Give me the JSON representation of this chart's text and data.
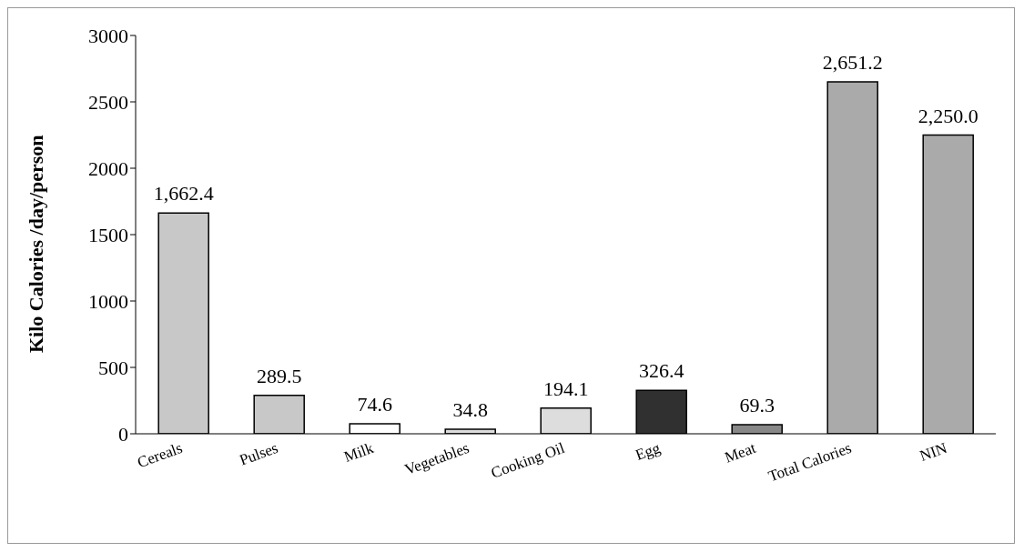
{
  "chart_data": {
    "type": "bar",
    "ylabel": "Kilo Calories /day/person",
    "categories": [
      "Cereals",
      "Pulses",
      "Milk",
      "Vegetables",
      "Cooking Oil",
      "Egg",
      "Meat",
      "Total Calories",
      "NIN"
    ],
    "values": [
      1662.4,
      289.5,
      74.6,
      34.8,
      194.1,
      326.4,
      69.3,
      2651.2,
      2250.0
    ],
    "value_labels": [
      "1,662.4",
      "289.5",
      "74.6",
      "34.8",
      "194.1",
      "326.4",
      "69.3",
      "2,651.2",
      "2,250.0"
    ],
    "colors": [
      "#c8c8c8",
      "#c8c8c8",
      "#ffffff",
      "#dddddd",
      "#dddddd",
      "#303030",
      "#888888",
      "#aaaaaa",
      "#aaaaaa"
    ],
    "ylim": [
      0,
      3000
    ],
    "yticks": [
      0,
      500,
      1000,
      1500,
      2000,
      2500,
      3000
    ],
    "grid": false
  }
}
